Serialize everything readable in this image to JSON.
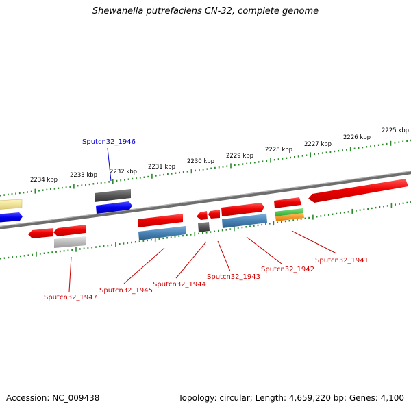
{
  "title": "Shewanella putrefaciens CN-32, complete genome",
  "accession": "Accession: NC_009438",
  "topology": "Topology: circular; Length: 4,659,220 bp; Genes: 4,100",
  "kbp_labels": [
    "2234 kbp",
    "2233 kbp",
    "2232 kbp",
    "2231 kbp",
    "2230 kbp",
    "2229 kbp",
    "2228 kbp",
    "2227 kbp",
    "2226 kbp",
    "2225 kbp"
  ],
  "gene_labels": {
    "g1946": "Sputcn32_1946",
    "g1947": "Sputcn32_1947",
    "g1945": "Sputcn32_1945",
    "g1944": "Sputcn32_1944",
    "g1943": "Sputcn32_1943",
    "g1942": "Sputcn32_1942",
    "g1941": "Sputcn32_1941"
  },
  "colors": {
    "cds_red": "#ff0000",
    "trna_blue": "#0000ff",
    "gene_gray": "#555555",
    "steel_blue": "#4682b4",
    "label_red": "#cc0000",
    "label_blue": "#0000cc",
    "tick_green": "#2a8a2a"
  }
}
